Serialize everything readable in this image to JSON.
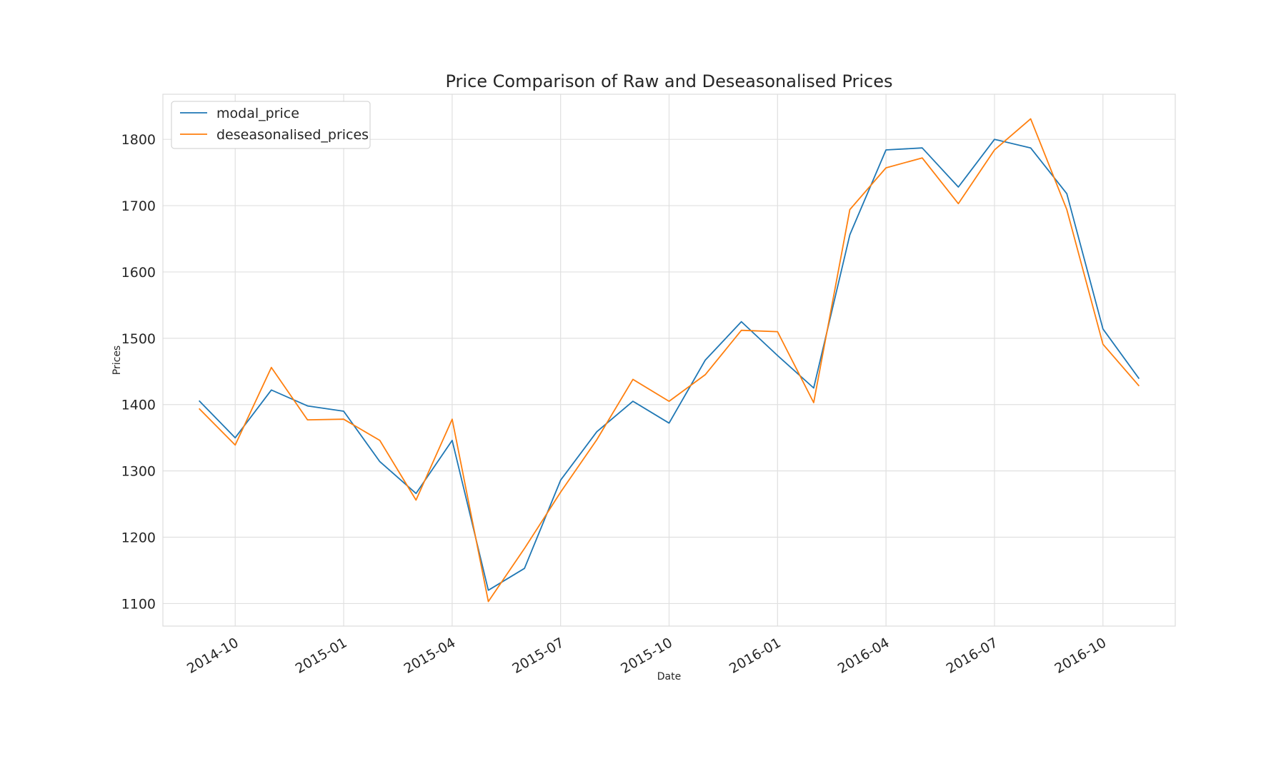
{
  "chart_data": {
    "type": "line",
    "title": "Price Comparison of Raw and Deseasonalised Prices",
    "xlabel": "Date",
    "ylabel": "Prices",
    "x": [
      "2014-09",
      "2014-10",
      "2014-11",
      "2014-12",
      "2015-01",
      "2015-02",
      "2015-03",
      "2015-04",
      "2015-05",
      "2015-06",
      "2015-07",
      "2015-08",
      "2015-09",
      "2015-10",
      "2015-11",
      "2015-12",
      "2016-01",
      "2016-02",
      "2016-03",
      "2016-04",
      "2016-05",
      "2016-06",
      "2016-07",
      "2016-08",
      "2016-09",
      "2016-10",
      "2016-11"
    ],
    "x_ticks": [
      "2014-10",
      "2015-01",
      "2015-04",
      "2015-07",
      "2015-10",
      "2016-01",
      "2016-04",
      "2016-07",
      "2016-10"
    ],
    "y_ticks": [
      1100,
      1200,
      1300,
      1400,
      1500,
      1600,
      1700,
      1800
    ],
    "ylim": [
      1066,
      1868
    ],
    "grid": true,
    "legend_position": "top-left",
    "series": [
      {
        "name": "modal_price",
        "color": "#1f77b4",
        "values": [
          1406,
          1350,
          1422,
          1398,
          1390,
          1314,
          1266,
          1346,
          1120,
          1153,
          1286,
          1359,
          1405,
          1372,
          1467,
          1525,
          1474,
          1425,
          1656,
          1784,
          1787,
          1728,
          1800,
          1787,
          1718,
          1514,
          1439
        ]
      },
      {
        "name": "deseasonalised_prices",
        "color": "#ff7f0e",
        "values": [
          1394,
          1339,
          1456,
          1377,
          1378,
          1346,
          1256,
          1378,
          1103,
          1183,
          1268,
          1347,
          1438,
          1405,
          1445,
          1512,
          1510,
          1403,
          1694,
          1757,
          1772,
          1703,
          1784,
          1831,
          1694,
          1491,
          1428
        ]
      }
    ]
  }
}
